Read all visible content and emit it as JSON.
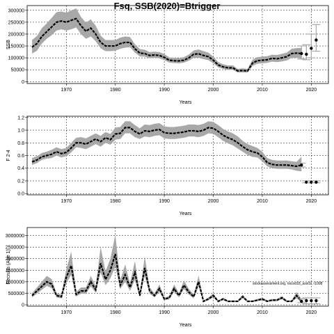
{
  "figure": {
    "title": "Fsq, SSB(2020)=Btrigger",
    "credit": "stockassessment.org, nscod18_ass02, r1008"
  },
  "chart_data": [
    {
      "type": "line",
      "xlabel": "Years",
      "ylabel": "SSB",
      "xlim": [
        1962,
        2023.5
      ],
      "ylim": [
        -8000,
        320000
      ],
      "xticks": [
        1970,
        1980,
        1990,
        2000,
        2010,
        2020
      ],
      "yticks": [
        0,
        50000,
        100000,
        150000,
        200000,
        250000,
        300000
      ],
      "ytick_labels": [
        "0",
        "50000",
        "100000",
        "150000",
        "200000",
        "250000",
        "300000"
      ],
      "grid": true,
      "band_color": "#a8a8a8",
      "line_color": "#000000",
      "x": [
        1963,
        1964,
        1965,
        1966,
        1967,
        1968,
        1969,
        1970,
        1971,
        1972,
        1973,
        1974,
        1975,
        1976,
        1977,
        1978,
        1979,
        1980,
        1981,
        1982,
        1983,
        1984,
        1985,
        1986,
        1987,
        1988,
        1989,
        1990,
        1991,
        1992,
        1993,
        1994,
        1995,
        1996,
        1997,
        1998,
        1999,
        2000,
        2001,
        2002,
        2003,
        2004,
        2005,
        2006,
        2007,
        2008,
        2009,
        2010,
        2011,
        2012,
        2013,
        2014,
        2015,
        2016,
        2017,
        2018
      ],
      "y": [
        145000,
        160000,
        190000,
        210000,
        230000,
        250000,
        255000,
        250000,
        258000,
        265000,
        235000,
        212000,
        225000,
        200000,
        165000,
        150000,
        150000,
        150000,
        160000,
        165000,
        165000,
        138000,
        120000,
        118000,
        110000,
        112000,
        110000,
        102000,
        90000,
        88000,
        87000,
        90000,
        100000,
        115000,
        117000,
        110000,
        105000,
        90000,
        70000,
        62000,
        58000,
        58000,
        45000,
        47000,
        45000,
        78000,
        88000,
        90000,
        92000,
        98000,
        96000,
        100000,
        105000,
        118000,
        120000,
        118000
      ],
      "lower": [
        118000,
        130000,
        160000,
        180000,
        195000,
        215000,
        220000,
        215000,
        220000,
        228000,
        200000,
        180000,
        190000,
        170000,
        140000,
        128000,
        128000,
        130000,
        138000,
        143000,
        145000,
        122000,
        106000,
        105000,
        98000,
        100000,
        98000,
        90000,
        80000,
        78000,
        77000,
        80000,
        88000,
        100000,
        100000,
        95000,
        90000,
        77000,
        60000,
        53000,
        49000,
        49000,
        38000,
        39000,
        38000,
        66000,
        75000,
        77000,
        79000,
        84000,
        82000,
        85000,
        89000,
        100000,
        100000,
        96000
      ],
      "upper": [
        175000,
        192000,
        225000,
        245000,
        268000,
        292000,
        295000,
        290000,
        300000,
        308000,
        272000,
        248000,
        262000,
        235000,
        193000,
        175000,
        175000,
        175000,
        185000,
        190000,
        188000,
        157000,
        137000,
        134000,
        124000,
        126000,
        124000,
        116000,
        102000,
        100000,
        99000,
        103000,
        114000,
        131000,
        135000,
        128000,
        122000,
        105000,
        82000,
        73000,
        68000,
        68000,
        53000,
        56000,
        53000,
        92000,
        103000,
        105000,
        107000,
        113000,
        112000,
        117000,
        122000,
        138000,
        141000,
        142000
      ],
      "forecast": {
        "x": [
          2018,
          2019,
          2020,
          2021
        ],
        "y": [
          118000,
          115000,
          140000,
          175000
        ],
        "lower": [
          95000,
          92000,
          100000,
          128000
        ],
        "upper": [
          150000,
          155000,
          200000,
          240000
        ]
      }
    },
    {
      "type": "line",
      "xlabel": "Years",
      "ylabel": "F 2-4",
      "xlim": [
        1962,
        2023.5
      ],
      "ylim": [
        -0.02,
        1.22
      ],
      "xticks": [
        1970,
        1980,
        1990,
        2000,
        2010,
        2020
      ],
      "yticks": [
        0,
        0.2,
        0.4,
        0.6,
        0.8,
        1.0,
        1.2
      ],
      "ytick_labels": [
        "0.0",
        "0.2",
        "0.4",
        "0.6",
        "0.8",
        "1.0",
        "1.2"
      ],
      "grid": true,
      "band_color": "#a8a8a8",
      "line_color": "#000000",
      "x": [
        1963,
        1964,
        1965,
        1966,
        1967,
        1968,
        1969,
        1970,
        1971,
        1972,
        1973,
        1974,
        1975,
        1976,
        1977,
        1978,
        1979,
        1980,
        1981,
        1982,
        1983,
        1984,
        1985,
        1986,
        1987,
        1988,
        1989,
        1990,
        1991,
        1992,
        1993,
        1994,
        1995,
        1996,
        1997,
        1998,
        1999,
        2000,
        2001,
        2002,
        2003,
        2004,
        2005,
        2006,
        2007,
        2008,
        2009,
        2010,
        2011,
        2012,
        2013,
        2014,
        2015,
        2016,
        2017,
        2018
      ],
      "y": [
        0.5,
        0.53,
        0.58,
        0.6,
        0.62,
        0.66,
        0.63,
        0.65,
        0.72,
        0.8,
        0.8,
        0.78,
        0.82,
        0.86,
        0.82,
        0.88,
        0.85,
        0.94,
        0.95,
        1.04,
        1.04,
        0.98,
        0.94,
        0.99,
        0.98,
        1.0,
        1.01,
        0.96,
        0.95,
        0.95,
        0.96,
        0.97,
        0.99,
        0.99,
        0.98,
        1.0,
        1.04,
        1.03,
        0.98,
        0.92,
        0.88,
        0.85,
        0.8,
        0.74,
        0.69,
        0.66,
        0.64,
        0.58,
        0.49,
        0.46,
        0.45,
        0.45,
        0.45,
        0.44,
        0.43,
        0.45
      ],
      "lower": [
        0.45,
        0.48,
        0.53,
        0.55,
        0.56,
        0.6,
        0.57,
        0.59,
        0.65,
        0.73,
        0.72,
        0.7,
        0.74,
        0.78,
        0.74,
        0.8,
        0.77,
        0.85,
        0.86,
        0.95,
        0.95,
        0.89,
        0.86,
        0.9,
        0.89,
        0.91,
        0.92,
        0.87,
        0.86,
        0.86,
        0.87,
        0.88,
        0.9,
        0.9,
        0.89,
        0.91,
        0.95,
        0.94,
        0.89,
        0.83,
        0.79,
        0.76,
        0.71,
        0.66,
        0.61,
        0.58,
        0.57,
        0.51,
        0.43,
        0.4,
        0.39,
        0.39,
        0.39,
        0.38,
        0.36,
        0.35
      ],
      "upper": [
        0.56,
        0.59,
        0.64,
        0.66,
        0.69,
        0.73,
        0.7,
        0.72,
        0.8,
        0.88,
        0.89,
        0.87,
        0.91,
        0.95,
        0.91,
        0.97,
        0.94,
        1.04,
        1.05,
        1.14,
        1.14,
        1.08,
        1.03,
        1.09,
        1.08,
        1.1,
        1.11,
        1.06,
        1.05,
        1.05,
        1.06,
        1.07,
        1.09,
        1.09,
        1.08,
        1.1,
        1.14,
        1.13,
        1.08,
        1.02,
        0.98,
        0.95,
        0.9,
        0.83,
        0.78,
        0.75,
        0.72,
        0.66,
        0.56,
        0.53,
        0.52,
        0.52,
        0.52,
        0.51,
        0.5,
        0.58
      ],
      "forecast": {
        "x": [
          2018,
          2019,
          2020,
          2021
        ],
        "y": [
          0.45,
          0.18,
          0.18,
          0.18
        ],
        "lower": [
          0.42,
          0.17,
          0.17,
          0.17
        ],
        "upper": [
          0.48,
          0.2,
          0.2,
          0.2
        ]
      }
    },
    {
      "type": "line",
      "xlabel": "Years",
      "ylabel": "Recruits (Age 1)",
      "xlim": [
        1962,
        2023.5
      ],
      "ylim": [
        -60000,
        3350000
      ],
      "xticks": [
        1970,
        1980,
        1990,
        2000,
        2010,
        2020
      ],
      "yticks": [
        0,
        500000,
        1000000,
        1500000,
        2000000,
        2500000,
        3000000
      ],
      "ytick_labels": [
        "0",
        "500000",
        "1000000",
        "1500000",
        "2000000",
        "2500000",
        "3000000"
      ],
      "grid": true,
      "band_color": "#a8a8a8",
      "line_color": "#000000",
      "x": [
        1963,
        1964,
        1965,
        1966,
        1967,
        1968,
        1969,
        1970,
        1971,
        1972,
        1973,
        1974,
        1975,
        1976,
        1977,
        1978,
        1979,
        1980,
        1981,
        1982,
        1983,
        1984,
        1985,
        1986,
        1987,
        1988,
        1989,
        1990,
        1991,
        1992,
        1993,
        1994,
        1995,
        1996,
        1997,
        1998,
        1999,
        2000,
        2001,
        2002,
        2003,
        2004,
        2005,
        2006,
        2007,
        2008,
        2009,
        2010,
        2011,
        2012,
        2013,
        2014,
        2015,
        2016,
        2017,
        2018
      ],
      "y": [
        400000,
        600000,
        800000,
        1000000,
        900000,
        400000,
        350000,
        1200000,
        1700000,
        450000,
        600000,
        600000,
        1000000,
        650000,
        1800000,
        1100000,
        1500000,
        2200000,
        850000,
        1300000,
        750000,
        1400000,
        400000,
        1600000,
        600000,
        400000,
        700000,
        250000,
        300000,
        700000,
        400000,
        850000,
        550000,
        350000,
        1000000,
        150000,
        250000,
        400000,
        150000,
        250000,
        150000,
        150000,
        150000,
        350000,
        150000,
        150000,
        200000,
        250000,
        150000,
        200000,
        200000,
        300000,
        150000,
        150000,
        400000,
        150000
      ],
      "lower": [
        320000,
        480000,
        650000,
        820000,
        720000,
        320000,
        280000,
        950000,
        1300000,
        360000,
        480000,
        480000,
        800000,
        520000,
        1400000,
        850000,
        1150000,
        1650000,
        680000,
        1000000,
        600000,
        1080000,
        320000,
        1250000,
        480000,
        320000,
        560000,
        200000,
        240000,
        560000,
        320000,
        680000,
        440000,
        280000,
        800000,
        120000,
        200000,
        320000,
        120000,
        200000,
        120000,
        120000,
        120000,
        280000,
        120000,
        120000,
        160000,
        200000,
        120000,
        160000,
        160000,
        240000,
        120000,
        120000,
        290000,
        90000
      ],
      "upper": [
        500000,
        750000,
        1000000,
        1250000,
        1120000,
        500000,
        440000,
        1550000,
        2300000,
        560000,
        750000,
        750000,
        1250000,
        810000,
        2500000,
        1450000,
        2000000,
        3050000,
        1060000,
        1750000,
        940000,
        1900000,
        500000,
        2100000,
        750000,
        500000,
        880000,
        310000,
        380000,
        880000,
        500000,
        1060000,
        690000,
        440000,
        1260000,
        190000,
        310000,
        500000,
        190000,
        310000,
        190000,
        190000,
        190000,
        440000,
        190000,
        190000,
        250000,
        310000,
        190000,
        250000,
        250000,
        380000,
        190000,
        190000,
        560000,
        250000
      ],
      "forecast": {
        "x": [
          2018,
          2019,
          2020,
          2021
        ],
        "y": [
          150000,
          180000,
          180000,
          180000
        ],
        "lower": [
          90000,
          40000,
          40000,
          40000
        ],
        "upper": [
          250000,
          300000,
          300000,
          300000
        ]
      }
    }
  ]
}
